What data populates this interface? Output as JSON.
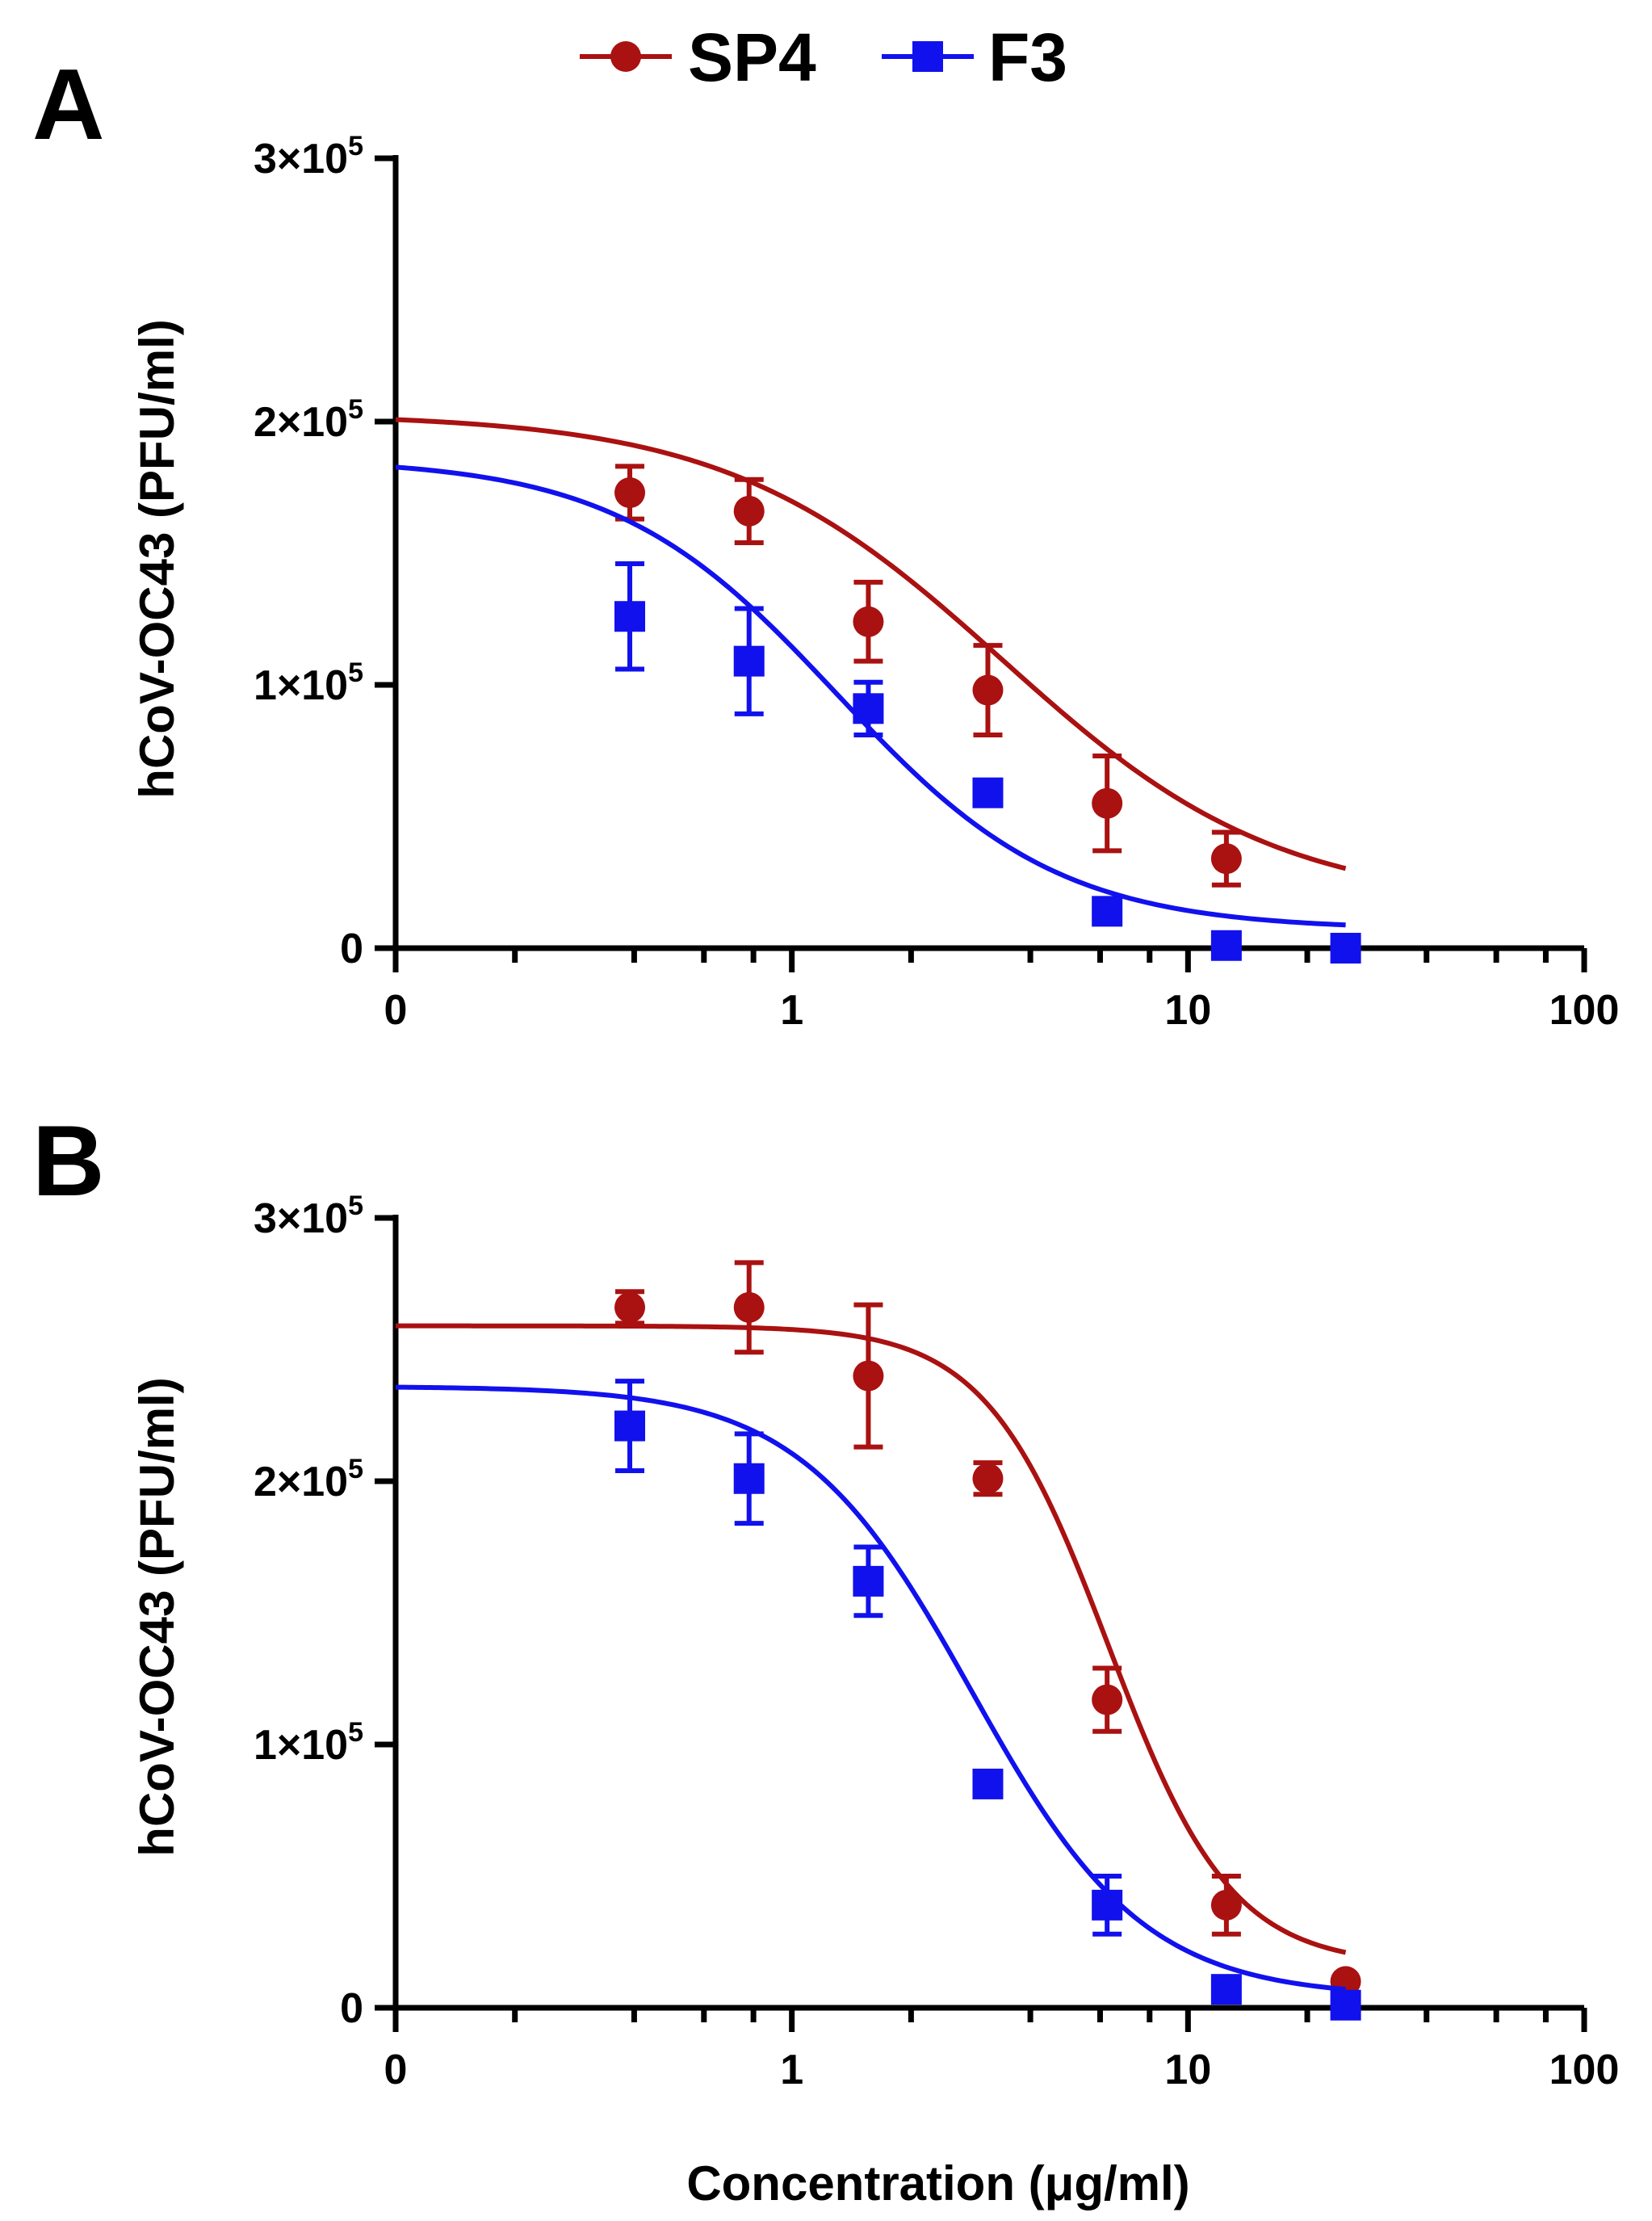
{
  "chart_data": [
    {
      "panel": "A",
      "type": "scatter",
      "fit": "dose-response curve",
      "xscale": "log",
      "xlim": [
        0.1,
        100
      ],
      "ylim": [
        0,
        300000
      ],
      "xlabel": "",
      "ylabel": "hCoV-OC43 (PFU/ml)",
      "xtick_labels": [
        "0",
        "1",
        "10",
        "100"
      ],
      "ytick_labels": [
        {
          "coef": "0",
          "exp": ""
        },
        {
          "coef": "1×10",
          "exp": "5"
        },
        {
          "coef": "2×10",
          "exp": "5"
        },
        {
          "coef": "3×10",
          "exp": "5"
        }
      ],
      "series": [
        {
          "name": "SP4",
          "color": "#aa1111",
          "marker": "circle",
          "x": [
            0.39,
            0.78,
            1.56,
            3.125,
            6.25,
            12.5,
            25
          ],
          "y": [
            173000,
            166000,
            124000,
            98000,
            55000,
            34000,
            0
          ],
          "err": [
            10000,
            12000,
            15000,
            17000,
            18000,
            10000,
            0
          ],
          "fit": {
            "top": 203000,
            "bottom": 16000,
            "ec50": 3.4,
            "hill": 1.25
          }
        },
        {
          "name": "F3",
          "color": "#1111ee",
          "marker": "square",
          "x": [
            0.39,
            0.78,
            1.56,
            3.125,
            6.25,
            12.5,
            25
          ],
          "y": [
            126000,
            109000,
            91000,
            59000,
            14000,
            1000,
            0
          ],
          "err": [
            20000,
            20000,
            10000,
            0,
            0,
            0,
            0
          ],
          "fit": {
            "top": 186000,
            "bottom": 7000,
            "ec50": 1.3,
            "hill": 1.55
          }
        }
      ]
    },
    {
      "panel": "B",
      "type": "scatter",
      "fit": "dose-response curve",
      "xscale": "log",
      "xlim": [
        0.1,
        100
      ],
      "ylim": [
        0,
        300000
      ],
      "xlabel": "Concentration (μg/ml)",
      "ylabel": "hCoV-OC43 (PFU/ml)",
      "xtick_labels": [
        "0",
        "1",
        "10",
        "100"
      ],
      "ytick_labels": [
        {
          "coef": "0",
          "exp": ""
        },
        {
          "coef": "1×10",
          "exp": "5"
        },
        {
          "coef": "2×10",
          "exp": "5"
        },
        {
          "coef": "3×10",
          "exp": "5"
        }
      ],
      "series": [
        {
          "name": "SP4",
          "color": "#aa1111",
          "marker": "circle",
          "x": [
            0.39,
            0.78,
            1.56,
            3.125,
            6.25,
            12.5,
            25
          ],
          "y": [
            266000,
            266000,
            240000,
            201000,
            117000,
            39000,
            10000
          ],
          "err": [
            6000,
            17000,
            27000,
            6000,
            12000,
            11000,
            0
          ],
          "fit": {
            "top": 259000,
            "bottom": 16000,
            "ec50": 6.3,
            "hill": 2.8
          }
        },
        {
          "name": "F3",
          "color": "#1111ee",
          "marker": "square",
          "x": [
            0.39,
            0.78,
            1.56,
            3.125,
            6.25,
            12.5,
            25
          ],
          "y": [
            221000,
            201000,
            162000,
            85000,
            39000,
            7000,
            1000
          ],
          "err": [
            17000,
            17000,
            13000,
            0,
            11000,
            0,
            0
          ],
          "fit": {
            "top": 236000,
            "bottom": 4000,
            "ec50": 2.85,
            "hill": 2.0
          }
        }
      ]
    }
  ],
  "legend": [
    {
      "name": "SP4",
      "color": "#aa1111",
      "marker": "circle"
    },
    {
      "name": "F3",
      "color": "#1111ee",
      "marker": "square"
    }
  ]
}
